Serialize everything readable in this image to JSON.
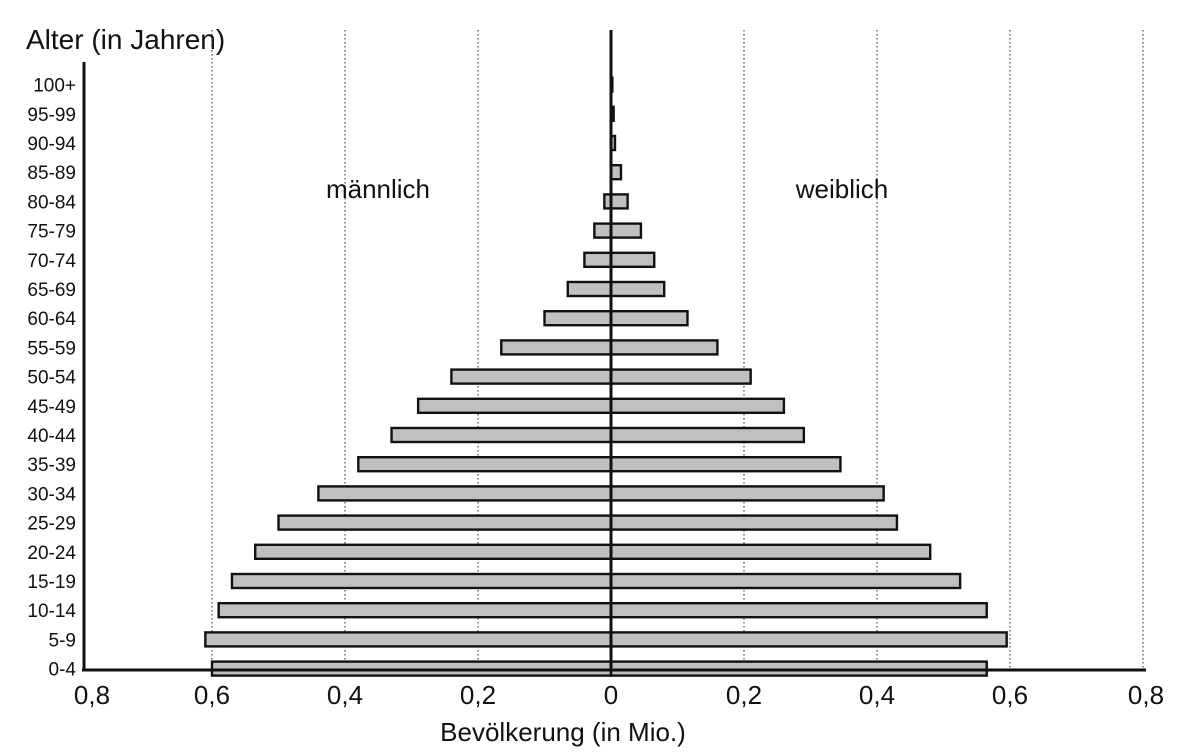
{
  "chart_data": {
    "type": "bar",
    "title": "Alter (in Jahren)",
    "xlabel": "Bevölkerung (in Mio.)",
    "ylabel": "Alter (in Jahren)",
    "xlim": [
      -0.8,
      0.8
    ],
    "xticks": [
      "0,8",
      "0,6",
      "0,4",
      "0,2",
      "0",
      "0,2",
      "0,4",
      "0,6",
      "0,8"
    ],
    "grid": "vertical dotted",
    "categories": [
      "100+",
      "95-99",
      "90-94",
      "85-89",
      "80-84",
      "75-79",
      "70-74",
      "65-69",
      "60-64",
      "55-59",
      "50-54",
      "45-49",
      "40-44",
      "35-39",
      "30-34",
      "25-29",
      "20-24",
      "15-19",
      "10-14",
      "5-9",
      "0-4"
    ],
    "series": [
      {
        "name": "männlich",
        "values": [
          0.0,
          0.0,
          0.0,
          0.0,
          0.01,
          0.025,
          0.04,
          0.065,
          0.1,
          0.165,
          0.24,
          0.29,
          0.33,
          0.38,
          0.44,
          0.5,
          0.535,
          0.57,
          0.59,
          0.61,
          0.6
        ]
      },
      {
        "name": "weiblich",
        "values": [
          0.002,
          0.004,
          0.006,
          0.015,
          0.025,
          0.045,
          0.065,
          0.08,
          0.115,
          0.16,
          0.21,
          0.26,
          0.29,
          0.345,
          0.41,
          0.43,
          0.48,
          0.525,
          0.565,
          0.595,
          0.565
        ]
      }
    ],
    "colors": {
      "bar_fill": "#c0c0c0",
      "bar_stroke": "#111111",
      "axis": "#111111",
      "grid": "#555555"
    }
  }
}
